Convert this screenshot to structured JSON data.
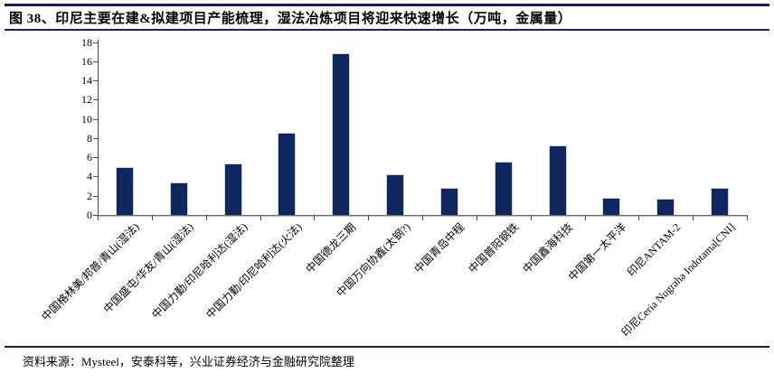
{
  "figure": {
    "title": "图 38、印尼主要在建&拟建项目产能梳理，湿法冶炼项目将迎来快速增长（万吨，金属量）",
    "source": "资料来源：Mysteel，安泰科等，兴业证券经济与金融研究院整理"
  },
  "colors": {
    "bar_fill": "#10265f",
    "bar_border": "#c9d3e6",
    "axis_line": "#4a4a4a",
    "header_rule": "#1c1c56"
  },
  "chart_data": {
    "type": "bar",
    "title": "印尼主要在建&拟建项目产能（万吨，金属量）",
    "categories": [
      "中国格林美/邦普/青山(湿法)",
      "中国盛屯/华友/青山(湿法)",
      "中国力勤/印尼哈利达(湿法)",
      "中国力勤/印尼哈利达(火法)",
      "中国德龙三期",
      "中国万向协鑫(太钢?)",
      "中国青岛中程",
      "中国普阳钢铁",
      "中国鑫海科技",
      "中国第一太平洋",
      "印尼ANTAM-2",
      "印尼Ceria Nugraha Indotama[CNI]"
    ],
    "values": [
      5.0,
      3.4,
      5.4,
      8.6,
      16.8,
      4.2,
      2.8,
      5.5,
      7.2,
      1.8,
      1.7,
      2.8
    ],
    "xlabel": "",
    "ylabel": "",
    "ylim": [
      0,
      18
    ],
    "ytick_step": 2,
    "yticks": [
      0,
      2,
      4,
      6,
      8,
      10,
      12,
      14,
      16,
      18
    ],
    "grid": false,
    "legend_position": "none"
  }
}
